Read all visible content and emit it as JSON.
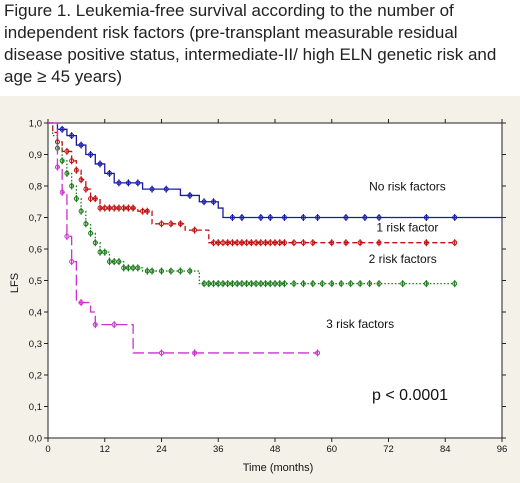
{
  "caption": "Figure 1. Leukemia-free survival according to the number of independent risk factors (pre-transplant measurable residual disease positive status, intermediate-II/ high ELN genetic risk and age ≥ 45 years)",
  "chart_data": {
    "type": "line",
    "title": "",
    "xlabel": "Time (months)",
    "ylabel": "LFS",
    "xlim": [
      0,
      96
    ],
    "ylim": [
      0,
      1.0
    ],
    "xticks": [
      0,
      12,
      24,
      36,
      48,
      60,
      72,
      84,
      96
    ],
    "yticks": [
      0.0,
      0.1,
      0.2,
      0.3,
      0.4,
      0.5,
      0.6,
      0.7,
      0.8,
      0.9,
      1.0
    ],
    "grid": false,
    "annotation": "p < 0.0001",
    "series": [
      {
        "name": "No risk factors",
        "color": "#1a1aa8",
        "dash": "solid",
        "step_points": [
          [
            0,
            1.0
          ],
          [
            2,
            0.98
          ],
          [
            4,
            0.96
          ],
          [
            6,
            0.93
          ],
          [
            8,
            0.9
          ],
          [
            10,
            0.87
          ],
          [
            12,
            0.84
          ],
          [
            14,
            0.81
          ],
          [
            20,
            0.79
          ],
          [
            28,
            0.77
          ],
          [
            32,
            0.75
          ],
          [
            36,
            0.73
          ],
          [
            37,
            0.7
          ],
          [
            96,
            0.7
          ]
        ],
        "censors": [
          3,
          5,
          7,
          9,
          11,
          13,
          15,
          17,
          19,
          22,
          25,
          30,
          33,
          35,
          39,
          41,
          45,
          47,
          50,
          54,
          57,
          63,
          67,
          70,
          80,
          86
        ]
      },
      {
        "name": "1 risk factor",
        "color": "#c01010",
        "dash": "dashed",
        "step_points": [
          [
            0,
            1.0
          ],
          [
            1,
            0.97
          ],
          [
            2,
            0.94
          ],
          [
            3,
            0.91
          ],
          [
            5,
            0.88
          ],
          [
            6,
            0.85
          ],
          [
            7,
            0.82
          ],
          [
            8,
            0.79
          ],
          [
            9,
            0.76
          ],
          [
            11,
            0.73
          ],
          [
            19,
            0.72
          ],
          [
            22,
            0.68
          ],
          [
            29,
            0.66
          ],
          [
            34,
            0.62
          ],
          [
            86,
            0.62
          ]
        ],
        "censors": [
          2,
          4,
          5,
          6,
          7,
          8,
          9,
          10,
          11,
          12,
          13,
          14,
          15,
          16,
          17,
          18,
          20,
          21,
          24,
          26,
          28,
          31,
          35,
          36,
          37,
          38,
          39,
          40,
          41,
          42,
          43,
          44,
          45,
          46,
          47,
          48,
          49,
          50,
          52,
          54,
          56,
          60,
          63,
          66,
          70,
          80,
          86
        ]
      },
      {
        "name": "2 risk factors",
        "color": "#1a7a1a",
        "dash": "dotted",
        "step_points": [
          [
            0,
            1.0
          ],
          [
            1,
            0.96
          ],
          [
            2,
            0.92
          ],
          [
            3,
            0.88
          ],
          [
            4,
            0.84
          ],
          [
            5,
            0.8
          ],
          [
            6,
            0.76
          ],
          [
            7,
            0.72
          ],
          [
            8,
            0.68
          ],
          [
            9,
            0.65
          ],
          [
            10,
            0.62
          ],
          [
            11,
            0.59
          ],
          [
            13,
            0.56
          ],
          [
            16,
            0.54
          ],
          [
            20,
            0.53
          ],
          [
            32,
            0.49
          ],
          [
            86,
            0.49
          ]
        ],
        "censors": [
          2,
          3,
          4,
          5,
          6,
          7,
          8,
          9,
          10,
          11,
          12,
          13,
          14,
          15,
          16,
          17,
          18,
          19,
          21,
          22,
          24,
          26,
          28,
          30,
          33,
          34,
          35,
          36,
          37,
          38,
          39,
          40,
          41,
          42,
          43,
          44,
          45,
          46,
          47,
          48,
          49,
          50,
          52,
          54,
          56,
          58,
          60,
          62,
          64,
          66,
          68,
          70,
          75,
          80,
          86
        ]
      },
      {
        "name": "3 risk factors",
        "color": "#cc33cc",
        "dash": "longdash",
        "step_points": [
          [
            0,
            1.0
          ],
          [
            2,
            0.86
          ],
          [
            3,
            0.78
          ],
          [
            4,
            0.64
          ],
          [
            5,
            0.56
          ],
          [
            6,
            0.43
          ],
          [
            9,
            0.4
          ],
          [
            10,
            0.36
          ],
          [
            14,
            0.36
          ],
          [
            18,
            0.27
          ],
          [
            57,
            0.27
          ]
        ],
        "censors": [
          2,
          3,
          4,
          5,
          7,
          10,
          14,
          24,
          31,
          57
        ]
      }
    ]
  }
}
